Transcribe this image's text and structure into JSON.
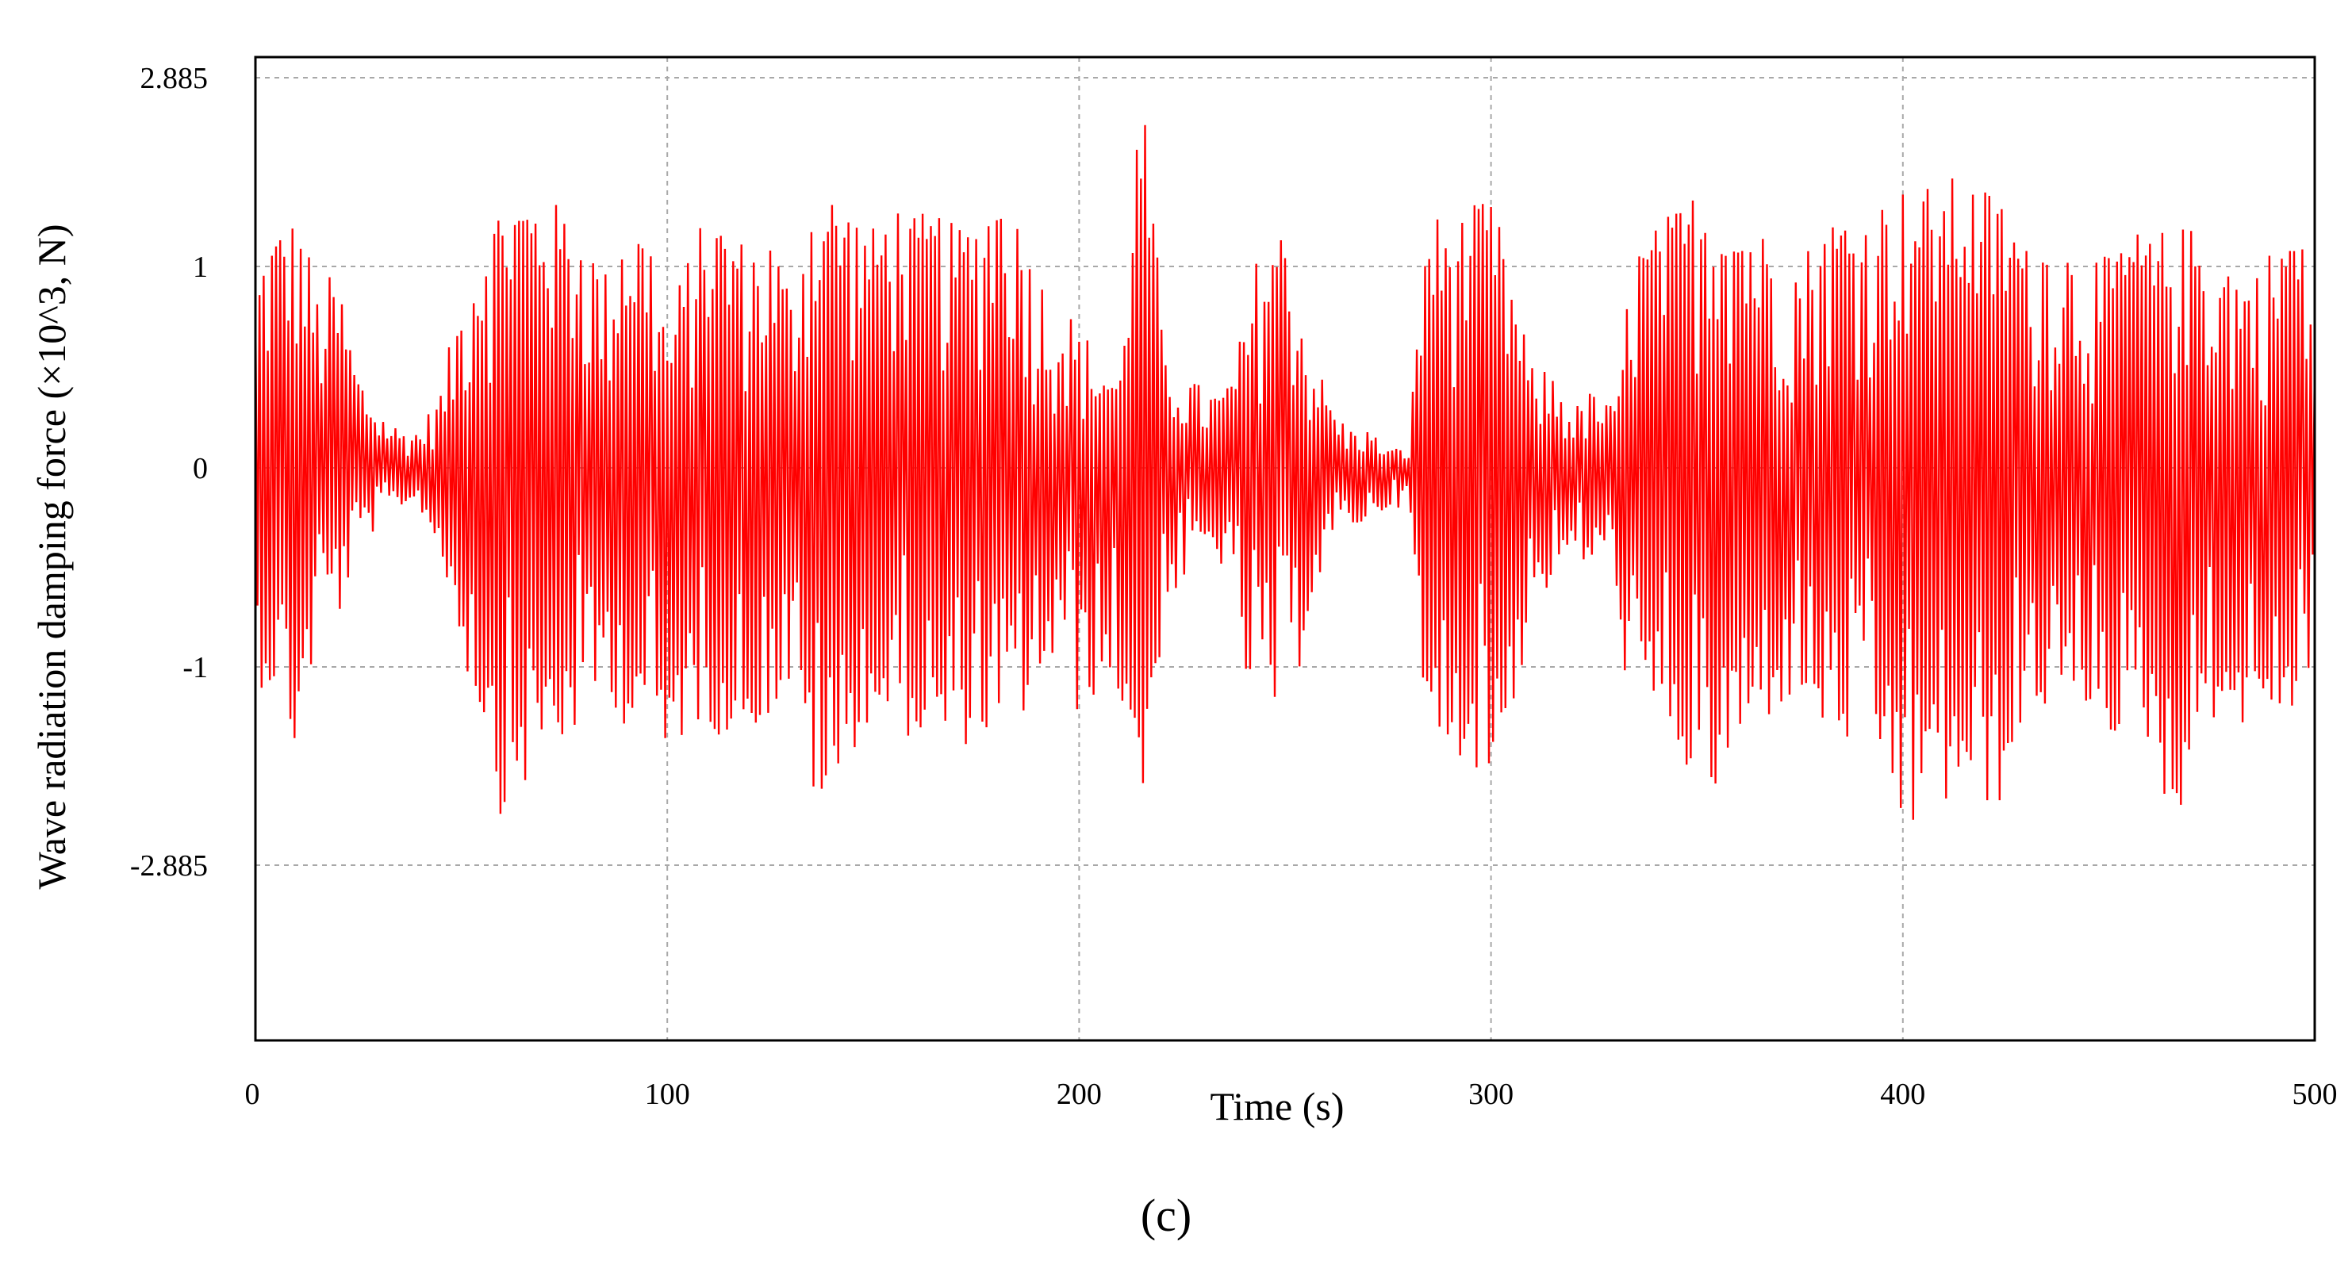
{
  "caption": "(c)",
  "chart_data": {
    "type": "line",
    "xlabel": "Time (s)",
    "ylabel": "Wave radiation damping force (×10^3, N)",
    "xlim": [
      0,
      500
    ],
    "ylim": [
      -2.885,
      2.885
    ],
    "x_nonlinear_note": "",
    "x_ticks": [
      0,
      100,
      200,
      300,
      400,
      500
    ],
    "x_tick_labels": [
      "0",
      "100",
      "200",
      "300",
      "400",
      "500"
    ],
    "y_ticks": [
      2.885,
      1,
      0,
      -1,
      -2.885
    ],
    "y_tick_labels": [
      "2.885",
      "1",
      "0",
      "-1",
      "-2.885"
    ],
    "grid": true,
    "series": [
      {
        "color": "#ff0000",
        "sample_interval_s": 0.5,
        "envelope": {
          "x": [
            0,
            5,
            10,
            15,
            20,
            25,
            30,
            35,
            40,
            45,
            50,
            55,
            60,
            65,
            70,
            75,
            80,
            85,
            90,
            95,
            100,
            105,
            110,
            115,
            120,
            125,
            130,
            135,
            140,
            145,
            150,
            155,
            160,
            165,
            170,
            175,
            180,
            185,
            190,
            195,
            200,
            205,
            210,
            215,
            220,
            225,
            230,
            235,
            240,
            245,
            250,
            255,
            260,
            265,
            270,
            275,
            280,
            285,
            290,
            295,
            300,
            305,
            310,
            315,
            320,
            325,
            330,
            335,
            340,
            345,
            350,
            355,
            360,
            365,
            370,
            375,
            380,
            385,
            390,
            395,
            400,
            405,
            410,
            415,
            420,
            425,
            430,
            435,
            440,
            445,
            450,
            455,
            460,
            465,
            470,
            475,
            480,
            485,
            490,
            495,
            500
          ],
          "upper": [
            1.0,
            1.4,
            1.5,
            0.9,
            1.0,
            0.5,
            0.3,
            0.2,
            0.2,
            0.4,
            0.9,
            1.4,
            1.7,
            1.8,
            1.7,
            1.6,
            1.3,
            1.0,
            1.5,
            1.4,
            0.7,
            1.1,
            1.6,
            1.4,
            1.2,
            1.3,
            0.9,
            1.7,
            1.8,
            1.6,
            1.4,
            1.7,
            1.5,
            1.6,
            1.4,
            1.5,
            1.9,
            1.5,
            1.0,
            0.9,
            0.7,
            0.6,
            0.5,
            2.9,
            0.7,
            0.5,
            0.4,
            0.4,
            0.7,
            1.3,
            1.4,
            0.7,
            0.4,
            0.2,
            0.2,
            0.1,
            0.1,
            1.6,
            1.4,
            1.6,
            1.7,
            1.0,
            0.5,
            0.5,
            0.3,
            0.4,
            0.3,
            1.2,
            1.4,
            1.6,
            1.8,
            1.8,
            1.6,
            1.4,
            1.2,
            1.1,
            1.4,
            1.6,
            1.5,
            1.7,
            1.8,
            1.8,
            1.9,
            1.9,
            1.8,
            1.7,
            1.2,
            1.3,
            1.2,
            1.1,
            1.1,
            1.4,
            1.3,
            1.4,
            1.4,
            1.2,
            1.1,
            1.0,
            1.2,
            1.5,
            0.8
          ],
          "lower": [
            -1.2,
            -1.2,
            -1.9,
            -0.7,
            -0.8,
            -0.4,
            -0.3,
            -0.2,
            -0.2,
            -0.5,
            -0.9,
            -1.5,
            -2.5,
            -2.2,
            -1.9,
            -1.8,
            -1.5,
            -1.2,
            -1.6,
            -1.4,
            -2.2,
            -1.5,
            -1.6,
            -1.7,
            -1.6,
            -1.5,
            -1.2,
            -2.2,
            -2.7,
            -1.8,
            -1.5,
            -1.6,
            -1.7,
            -1.8,
            -1.9,
            -1.6,
            -1.8,
            -1.6,
            -1.2,
            -1.0,
            -1.5,
            -1.2,
            -1.3,
            -2.5,
            -0.8,
            -0.6,
            -0.5,
            -0.5,
            -1.1,
            -1.4,
            -1.5,
            -0.8,
            -0.5,
            -0.3,
            -0.3,
            -0.2,
            -0.2,
            -1.9,
            -1.8,
            -1.9,
            -2.2,
            -1.4,
            -0.7,
            -0.6,
            -0.5,
            -0.5,
            -0.6,
            -1.5,
            -1.6,
            -1.8,
            -2.3,
            -2.3,
            -1.9,
            -1.6,
            -1.4,
            -1.3,
            -1.6,
            -1.8,
            -1.7,
            -2.0,
            -2.7,
            -2.5,
            -2.4,
            -2.2,
            -2.6,
            -2.2,
            -1.5,
            -1.4,
            -1.5,
            -1.4,
            -1.6,
            -1.9,
            -1.7,
            -2.8,
            -1.9,
            -1.5,
            -1.5,
            -1.7,
            -1.4,
            -1.6,
            -0.8
          ]
        }
      }
    ]
  }
}
